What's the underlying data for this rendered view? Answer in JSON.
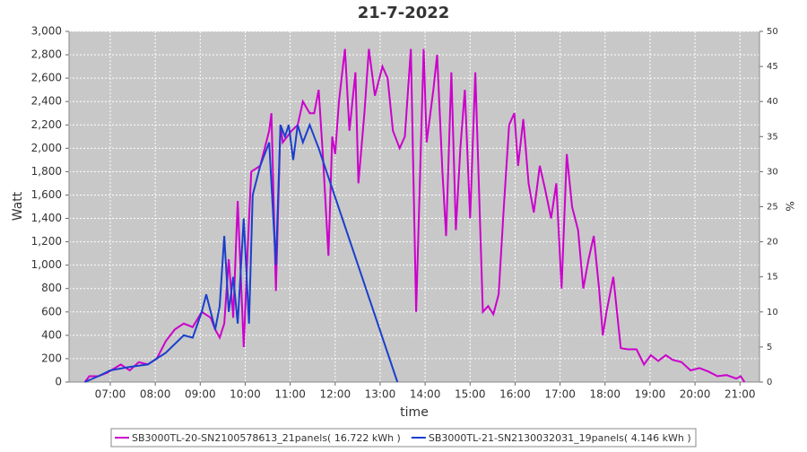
{
  "chart_data": {
    "type": "line",
    "title": "21-7-2022",
    "xlabel": "time",
    "ylabel": "Watt",
    "y2label": "%",
    "xlim": [
      "06:05",
      "21:26"
    ],
    "xticks": [
      "07:00",
      "08:00",
      "09:00",
      "10:00",
      "11:00",
      "12:00",
      "13:00",
      "14:00",
      "15:00",
      "16:00",
      "17:00",
      "18:00",
      "19:00",
      "20:00",
      "21:00"
    ],
    "ylim": [
      0,
      3000
    ],
    "yticks": [
      0,
      200,
      400,
      600,
      800,
      {
        "value": 1000,
        "label": "1,000"
      },
      {
        "value": 1200,
        "label": "1,200"
      },
      {
        "value": 1400,
        "label": "1,400"
      },
      {
        "value": 1600,
        "label": "1,600"
      },
      {
        "value": 1800,
        "label": "1,800"
      },
      {
        "value": 2000,
        "label": "2,000"
      },
      {
        "value": 2200,
        "label": "2,200"
      },
      {
        "value": 2400,
        "label": "2,400"
      },
      {
        "value": 2600,
        "label": "2,600"
      },
      {
        "value": 2800,
        "label": "2,800"
      },
      {
        "value": 3000,
        "label": "3,000"
      }
    ],
    "y2lim": [
      0,
      50
    ],
    "y2ticks": [
      0,
      5,
      10,
      15,
      20,
      25,
      30,
      35,
      40,
      45,
      50
    ],
    "grid": true,
    "series": [
      {
        "name": "SB3000TL-20-SN2100578613_21panels( 16.722 kWh )",
        "color": "#cc00cc",
        "x": [
          "06:26",
          "06:32",
          "06:44",
          "06:56",
          "07:14",
          "07:26",
          "07:38",
          "07:50",
          "08:02",
          "08:14",
          "08:26",
          "08:38",
          "08:50",
          "09:02",
          "09:14",
          "09:20",
          "09:26",
          "09:32",
          "09:38",
          "09:44",
          "09:50",
          "09:58",
          "10:03",
          "10:08",
          "10:20",
          "10:32",
          "10:35",
          "10:41",
          "10:47",
          "10:50",
          "10:56",
          "11:02",
          "11:10",
          "11:17",
          "11:26",
          "11:32",
          "11:38",
          "11:44",
          "11:51",
          "11:56",
          "12:00",
          "12:05",
          "12:13",
          "12:19",
          "12:27",
          "12:31",
          "12:39",
          "12:45",
          "12:53",
          "13:03",
          "13:10",
          "13:17",
          "13:26",
          "13:33",
          "13:41",
          "13:48",
          "13:58",
          "14:02",
          "14:11",
          "14:16",
          "14:23",
          "14:28",
          "14:35",
          "14:41",
          "14:47",
          "14:53",
          "15:00",
          "15:07",
          "15:17",
          "15:24",
          "15:31",
          "15:38",
          "15:45",
          "15:52",
          "15:59",
          "16:04",
          "16:11",
          "16:18",
          "16:25",
          "16:33",
          "16:40",
          "16:48",
          "16:55",
          "17:02",
          "17:09",
          "17:16",
          "17:24",
          "17:31",
          "17:38",
          "17:45",
          "17:52",
          "17:57",
          "18:02",
          "18:11",
          "18:21",
          "18:30",
          "18:42",
          "18:52",
          "19:01",
          "19:11",
          "19:21",
          "19:30",
          "19:42",
          "19:54",
          "20:06",
          "20:18",
          "20:30",
          "20:42",
          "20:55",
          "21:01",
          "21:06"
        ],
        "values": [
          0,
          50,
          50,
          80,
          150,
          100,
          170,
          150,
          200,
          350,
          450,
          500,
          470,
          600,
          550,
          450,
          380,
          500,
          1050,
          550,
          1550,
          300,
          1100,
          1800,
          1850,
          2150,
          2300,
          780,
          2200,
          2050,
          2100,
          2150,
          2200,
          2400,
          2300,
          2300,
          2500,
          1900,
          1080,
          2100,
          1950,
          2400,
          2850,
          2150,
          2650,
          1700,
          2300,
          2850,
          2450,
          2700,
          2600,
          2150,
          2000,
          2100,
          2850,
          600,
          2850,
          2050,
          2500,
          2800,
          1800,
          1250,
          2650,
          1300,
          2000,
          2500,
          1400,
          2650,
          600,
          650,
          580,
          750,
          1500,
          2200,
          2300,
          1850,
          2250,
          1700,
          1450,
          1850,
          1650,
          1400,
          1700,
          800,
          1950,
          1500,
          1300,
          800,
          1050,
          1250,
          800,
          400,
          600,
          900,
          290,
          280,
          280,
          150,
          230,
          180,
          230,
          190,
          170,
          100,
          120,
          90,
          50,
          60,
          30,
          50,
          0
        ]
      },
      {
        "name": "SB3000TL-21-SN2130032031_19panels( 4.146 kWh )",
        "color": "#1a3fcc",
        "x": [
          "06:26",
          "06:44",
          "07:00",
          "07:26",
          "07:50",
          "08:14",
          "08:38",
          "08:50",
          "09:02",
          "09:08",
          "09:14",
          "09:20",
          "09:26",
          "09:32",
          "09:38",
          "09:44",
          "09:50",
          "09:58",
          "10:05",
          "10:10",
          "10:20",
          "10:32",
          "10:41",
          "10:47",
          "10:53",
          "10:58",
          "11:04",
          "11:10",
          "11:17",
          "11:26",
          "11:32",
          "11:38",
          "13:23"
        ],
        "values": [
          0,
          50,
          100,
          130,
          150,
          250,
          400,
          380,
          600,
          750,
          600,
          450,
          650,
          1250,
          600,
          900,
          500,
          1400,
          500,
          1600,
          1850,
          2050,
          1000,
          2200,
          2100,
          2200,
          1900,
          2200,
          2050,
          2200,
          2100,
          2000,
          0
        ]
      }
    ]
  }
}
